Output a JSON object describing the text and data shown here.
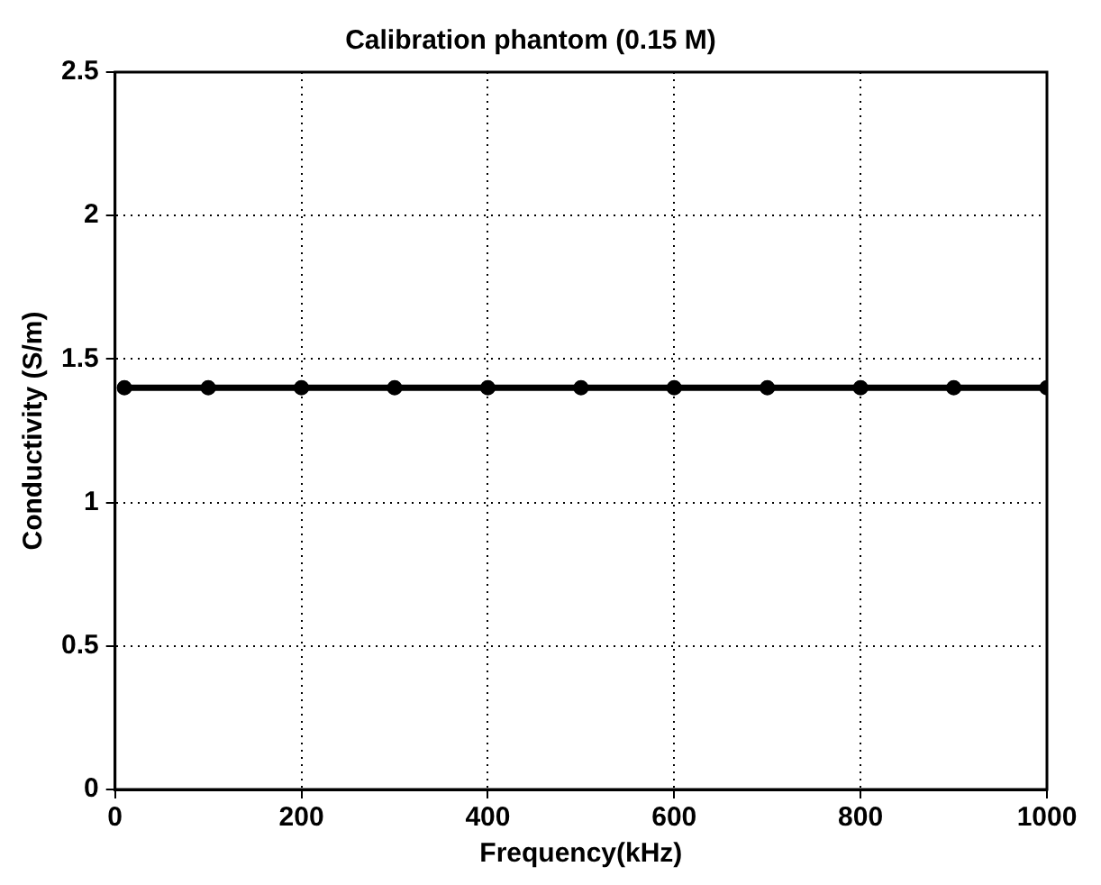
{
  "chart_data": {
    "type": "line",
    "title": "Calibration phantom (0.15 M)",
    "xlabel": "Frequency(kHz)",
    "ylabel": "Conductivity (S/m)",
    "x": [
      10,
      100,
      200,
      300,
      400,
      500,
      600,
      700,
      800,
      900,
      1000
    ],
    "series": [
      {
        "color": "#000000",
        "values": [
          1.4,
          1.4,
          1.4,
          1.4,
          1.4,
          1.4,
          1.4,
          1.4,
          1.4,
          1.4,
          1.4
        ]
      }
    ],
    "xlim": [
      0,
      1000
    ],
    "xticks": [
      0,
      200,
      400,
      600,
      800,
      1000
    ],
    "ylim": [
      0,
      2.5
    ],
    "yticks": [
      0,
      0.5,
      1,
      1.5,
      2,
      2.5
    ],
    "grid": true,
    "legend": false,
    "marker": "circle",
    "line_style": "solid"
  }
}
